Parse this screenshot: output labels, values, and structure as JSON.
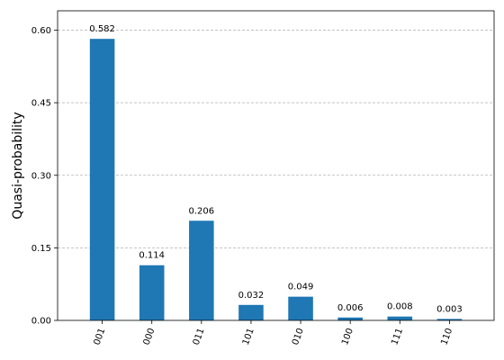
{
  "chart_data": {
    "type": "bar",
    "title": "",
    "xlabel": "",
    "ylabel": "Quasi-probability",
    "categories": [
      "001",
      "000",
      "011",
      "101",
      "010",
      "100",
      "111",
      "110"
    ],
    "values": [
      0.582,
      0.114,
      0.206,
      0.032,
      0.049,
      0.006,
      0.008,
      0.003
    ],
    "data_labels": [
      "0.582",
      "0.114",
      "0.206",
      "0.032",
      "0.049",
      "0.006",
      "0.008",
      "0.003"
    ],
    "yticks": [
      "0.00",
      "0.15",
      "0.30",
      "0.45",
      "0.60"
    ],
    "ytick_values": [
      0,
      0.15,
      0.3,
      0.45,
      0.6
    ],
    "ylim": [
      0,
      0.64
    ],
    "xtick_rotation": "70 degrees",
    "grid": "horizontal dashed",
    "bar_color": "#1f77b4",
    "grid_color": "#b0b0b0"
  }
}
